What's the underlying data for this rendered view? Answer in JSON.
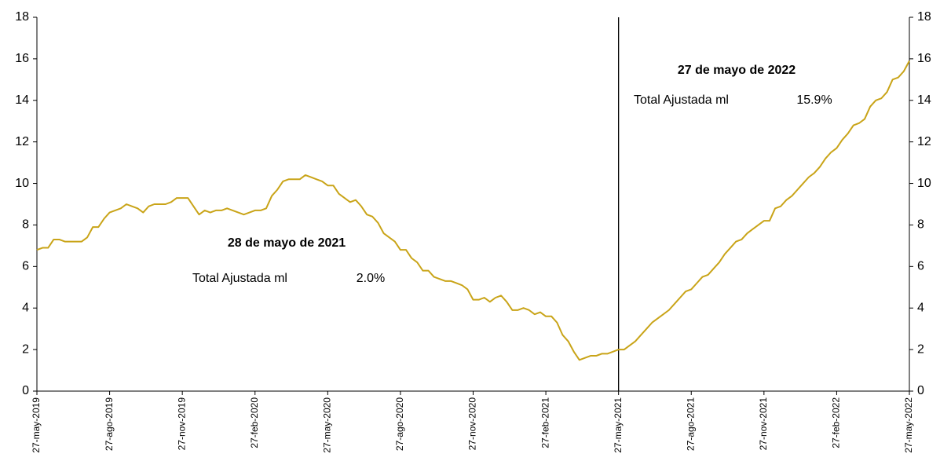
{
  "chart_data": {
    "type": "line",
    "categories": [
      "27-may-2019",
      null,
      null,
      null,
      null,
      null,
      null,
      null,
      null,
      null,
      null,
      null,
      null,
      "27-ago-2019",
      null,
      null,
      null,
      null,
      null,
      null,
      null,
      null,
      null,
      null,
      null,
      null,
      "27-nov-2019",
      null,
      null,
      null,
      null,
      null,
      null,
      null,
      null,
      null,
      null,
      null,
      null,
      "27-feb-2020",
      null,
      null,
      null,
      null,
      null,
      null,
      null,
      null,
      null,
      null,
      null,
      null,
      "27-may-2020",
      null,
      null,
      null,
      null,
      null,
      null,
      null,
      null,
      null,
      null,
      null,
      null,
      "27-ago-2020",
      null,
      null,
      null,
      null,
      null,
      null,
      null,
      null,
      null,
      null,
      null,
      null,
      "27-nov-2020",
      null,
      null,
      null,
      null,
      null,
      null,
      null,
      null,
      null,
      null,
      null,
      null,
      "27-feb-2021",
      null,
      null,
      null,
      null,
      null,
      null,
      null,
      null,
      null,
      null,
      null,
      null,
      "27-may-2021",
      null,
      null,
      null,
      null,
      null,
      null,
      null,
      null,
      null,
      null,
      null,
      null,
      "27-ago-2021",
      null,
      null,
      null,
      null,
      null,
      null,
      null,
      null,
      null,
      null,
      null,
      null,
      "27-nov-2021",
      null,
      null,
      null,
      null,
      null,
      null,
      null,
      null,
      null,
      null,
      null,
      null,
      "27-feb-2022",
      null,
      null,
      null,
      null,
      null,
      null,
      null,
      null,
      null,
      null,
      null,
      null,
      "27-may-2022"
    ],
    "series": [
      {
        "color": "#c9a418",
        "values": [
          6.8,
          6.9,
          6.9,
          7.3,
          7.3,
          7.2,
          7.2,
          7.2,
          7.2,
          7.4,
          7.9,
          7.9,
          8.3,
          8.6,
          8.7,
          8.8,
          9.0,
          8.9,
          8.8,
          8.6,
          8.9,
          9.0,
          9.0,
          9.0,
          9.1,
          9.3,
          9.3,
          9.3,
          8.9,
          8.5,
          8.7,
          8.6,
          8.7,
          8.7,
          8.8,
          8.7,
          8.6,
          8.5,
          8.6,
          8.7,
          8.7,
          8.8,
          9.4,
          9.7,
          10.1,
          10.2,
          10.2,
          10.2,
          10.4,
          10.3,
          10.2,
          10.1,
          9.9,
          9.9,
          9.5,
          9.3,
          9.1,
          9.2,
          8.9,
          8.5,
          8.4,
          8.1,
          7.6,
          7.4,
          7.2,
          6.8,
          6.8,
          6.4,
          6.2,
          5.8,
          5.8,
          5.5,
          5.4,
          5.3,
          5.3,
          5.2,
          5.1,
          4.9,
          4.4,
          4.4,
          4.5,
          4.3,
          4.5,
          4.6,
          4.3,
          3.9,
          3.9,
          4.0,
          3.9,
          3.7,
          3.8,
          3.6,
          3.6,
          3.3,
          2.7,
          2.4,
          1.9,
          1.5,
          1.6,
          1.7,
          1.7,
          1.8,
          1.8,
          1.9,
          2.0,
          2.0,
          2.2,
          2.4,
          2.7,
          3.0,
          3.3,
          3.5,
          3.7,
          3.9,
          4.2,
          4.5,
          4.8,
          4.9,
          5.2,
          5.5,
          5.6,
          5.9,
          6.2,
          6.6,
          6.9,
          7.2,
          7.3,
          7.6,
          7.8,
          8.0,
          8.2,
          8.2,
          8.8,
          8.9,
          9.2,
          9.4,
          9.7,
          10.0,
          10.3,
          10.5,
          10.8,
          11.2,
          11.5,
          11.7,
          12.1,
          12.4,
          12.8,
          12.9,
          13.1,
          13.7,
          14.0,
          14.1,
          14.4,
          15.0,
          15.1,
          15.4,
          15.9
        ]
      }
    ],
    "ylim": [
      0,
      18
    ],
    "yticks": [
      0,
      2,
      4,
      6,
      8,
      10,
      12,
      14,
      16,
      18
    ],
    "y2lim": [
      0,
      18
    ],
    "y2ticks": [
      0,
      2,
      4,
      6,
      8,
      10,
      12,
      14,
      16,
      18
    ],
    "vline": "27-may-2021",
    "annotations": [
      {
        "title": "28 de mayo de 2021",
        "label": "Total Ajustada ml",
        "value_label": "2.0%"
      },
      {
        "title": "27 de mayo de 2022",
        "label": "Total Ajustada ml",
        "value_label": "15.9%"
      }
    ]
  }
}
